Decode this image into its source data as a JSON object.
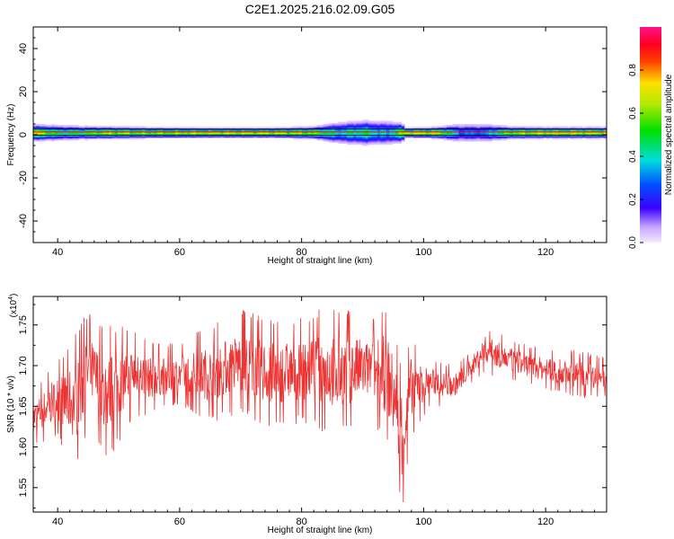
{
  "title": "C2E1.2025.216.02.09.G05",
  "chart_data": [
    {
      "type": "heatmap",
      "xlabel": "Height of straight line (km)",
      "ylabel": "Frequency (Hz)",
      "xlim": [
        36,
        130
      ],
      "ylim": [
        -50,
        50
      ],
      "xticks": [
        40,
        60,
        80,
        100,
        120
      ],
      "yticks": [
        -40,
        -20,
        0,
        20,
        40
      ],
      "band_center_hz": 1,
      "band_profile": [
        {
          "h": 37,
          "amp": 0.8,
          "halfwidth": 2.5
        },
        {
          "h": 40,
          "amp": 0.55,
          "halfwidth": 2.5
        },
        {
          "h": 44,
          "amp": 0.6,
          "halfwidth": 2.2
        },
        {
          "h": 48,
          "amp": 0.75,
          "halfwidth": 2.0
        },
        {
          "h": 55,
          "amp": 0.7,
          "halfwidth": 1.8
        },
        {
          "h": 65,
          "amp": 0.8,
          "halfwidth": 1.6
        },
        {
          "h": 75,
          "amp": 0.8,
          "halfwidth": 1.6
        },
        {
          "h": 82,
          "amp": 0.7,
          "halfwidth": 2.0
        },
        {
          "h": 86,
          "amp": 0.45,
          "halfwidth": 3.5
        },
        {
          "h": 90,
          "amp": 0.55,
          "halfwidth": 4.0
        },
        {
          "h": 94,
          "amp": 0.4,
          "halfwidth": 4.0
        },
        {
          "h": 96.5,
          "amp": 0.7,
          "halfwidth": 3.0
        },
        {
          "h": 97,
          "amp": 0.85,
          "halfwidth": 1.5
        },
        {
          "h": 102,
          "amp": 0.8,
          "halfwidth": 1.8
        },
        {
          "h": 106,
          "amp": 0.35,
          "halfwidth": 3.0
        },
        {
          "h": 110,
          "amp": 0.35,
          "halfwidth": 3.0
        },
        {
          "h": 114,
          "amp": 0.7,
          "halfwidth": 2.0
        },
        {
          "h": 120,
          "amp": 0.8,
          "halfwidth": 1.8
        },
        {
          "h": 130,
          "amp": 0.8,
          "halfwidth": 1.8
        }
      ],
      "colorbar": {
        "label": "Normalized spectral amplitude",
        "range": [
          0,
          1
        ],
        "ticks": [
          "0.0",
          "0.2",
          "0.4",
          "0.6",
          "0.8"
        ]
      }
    },
    {
      "type": "line",
      "xlabel": "Height of straight line (km)",
      "ylabel": "SNR (10 * v/v)",
      "y_multiplier": "(x10",
      "y_multiplier_exp": "4",
      "y_multiplier_close": ")",
      "xlim": [
        36,
        130
      ],
      "ylim": [
        1.52,
        1.785
      ],
      "xticks": [
        40,
        60,
        80,
        100,
        120
      ],
      "yticks": [
        "1.55",
        "1.60",
        "1.65",
        "1.70",
        "1.75"
      ],
      "series": [
        {
          "color": "#ee3333",
          "envelope": [
            {
              "x": 36,
              "low": 1.6,
              "high": 1.67
            },
            {
              "x": 40,
              "low": 1.61,
              "high": 1.71
            },
            {
              "x": 43,
              "low": 1.57,
              "high": 1.74
            },
            {
              "x": 45,
              "low": 1.62,
              "high": 1.77
            },
            {
              "x": 48,
              "low": 1.58,
              "high": 1.75
            },
            {
              "x": 52,
              "low": 1.63,
              "high": 1.75
            },
            {
              "x": 55,
              "low": 1.64,
              "high": 1.73
            },
            {
              "x": 60,
              "low": 1.65,
              "high": 1.73
            },
            {
              "x": 65,
              "low": 1.63,
              "high": 1.75
            },
            {
              "x": 70,
              "low": 1.64,
              "high": 1.77
            },
            {
              "x": 75,
              "low": 1.62,
              "high": 1.76
            },
            {
              "x": 80,
              "low": 1.63,
              "high": 1.76
            },
            {
              "x": 85,
              "low": 1.61,
              "high": 1.78
            },
            {
              "x": 88,
              "low": 1.62,
              "high": 1.77
            },
            {
              "x": 91,
              "low": 1.63,
              "high": 1.76
            },
            {
              "x": 94,
              "low": 1.6,
              "high": 1.78
            },
            {
              "x": 95.5,
              "low": 1.56,
              "high": 1.74
            },
            {
              "x": 96.5,
              "low": 1.52,
              "high": 1.7
            },
            {
              "x": 98,
              "low": 1.61,
              "high": 1.74
            },
            {
              "x": 101,
              "low": 1.65,
              "high": 1.71
            },
            {
              "x": 105,
              "low": 1.65,
              "high": 1.7
            },
            {
              "x": 108,
              "low": 1.68,
              "high": 1.72
            },
            {
              "x": 110,
              "low": 1.69,
              "high": 1.75
            },
            {
              "x": 115,
              "low": 1.68,
              "high": 1.73
            },
            {
              "x": 120,
              "low": 1.67,
              "high": 1.72
            },
            {
              "x": 125,
              "low": 1.66,
              "high": 1.72
            },
            {
              "x": 130,
              "low": 1.66,
              "high": 1.71
            }
          ]
        }
      ]
    }
  ]
}
